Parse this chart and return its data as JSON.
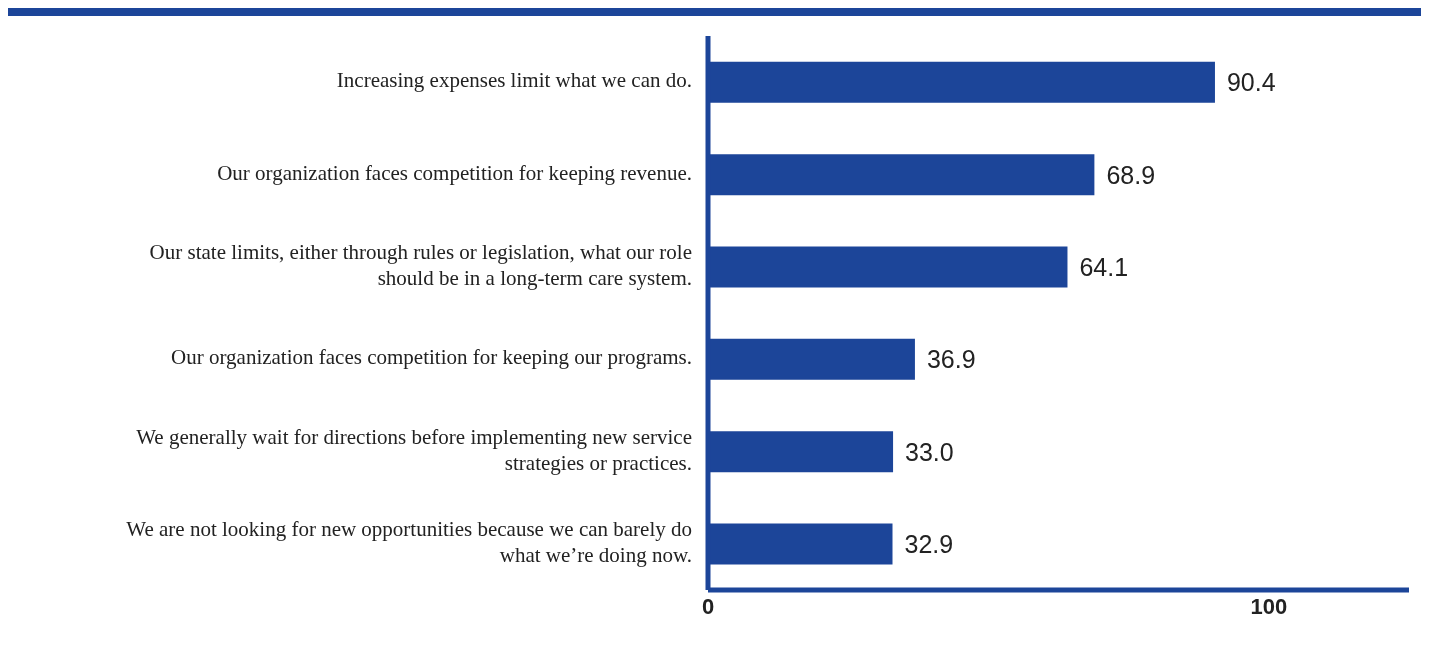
{
  "chart_data": {
    "type": "bar",
    "orientation": "horizontal",
    "categories": [
      "Increasing expenses limit what we can do.",
      "Our organization faces competition for keeping revenue.",
      "Our state limits, either through rules or legislation, what our role should be in a long-term care system.",
      "Our organization faces competition for keeping our programs.",
      "We generally wait for directions before implementing new service strategies or practices.",
      "We are not looking for new opportunities because we can barely do what we’re doing now."
    ],
    "values": [
      90.4,
      68.9,
      64.1,
      36.9,
      33.0,
      32.9
    ],
    "value_labels": [
      "90.4",
      "68.9",
      "64.1",
      "36.9",
      "33.0",
      "32.9"
    ],
    "color": "#1c4599",
    "xlim": [
      0,
      125
    ],
    "xticks": [
      0,
      100
    ]
  }
}
